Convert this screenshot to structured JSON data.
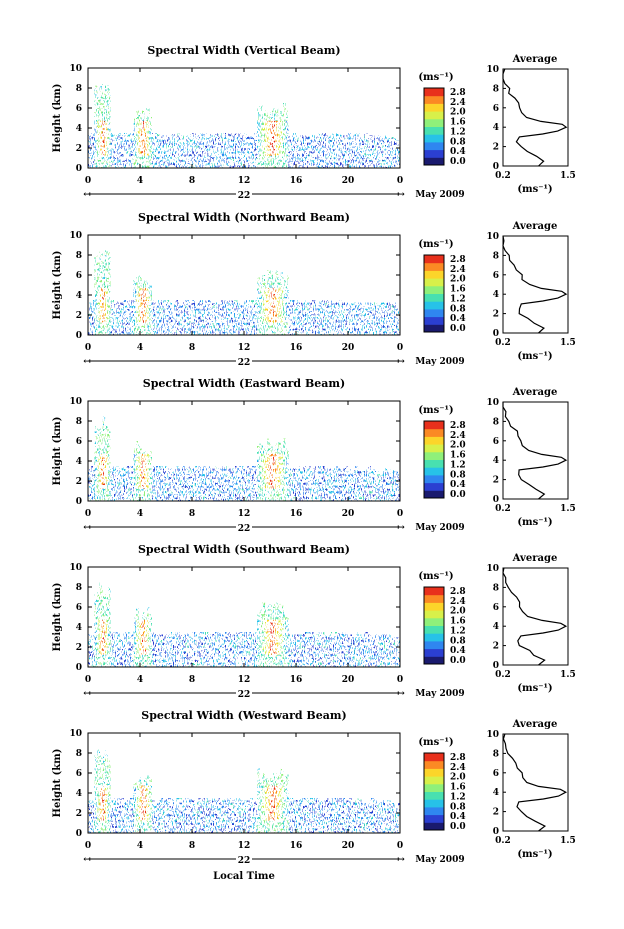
{
  "figure": {
    "x_axis_title": "Local Time",
    "month_label": "May 2009",
    "day_label": "22",
    "y_axis_title": "Height (km)",
    "unit_label": "(ms⁻¹)",
    "average_title": "Average",
    "average_unit": "(ms⁻¹)"
  },
  "colorbar": {
    "tick_labels": [
      "0.0",
      "0.4",
      "0.8",
      "1.2",
      "1.6",
      "2.0",
      "2.4",
      "2.8"
    ],
    "colors": [
      "#1a1a6e",
      "#2b3fd1",
      "#2f86f0",
      "#27c2e8",
      "#48e0b0",
      "#8ff07a",
      "#d8f04a",
      "#fcd52a",
      "#fb8a24",
      "#e8301c"
    ]
  },
  "panels": [
    {
      "title": "Spectral Width (Vertical Beam)"
    },
    {
      "title": "Spectral Width (Northward Beam)"
    },
    {
      "title": "Spectral Width (Eastward Beam)"
    },
    {
      "title": "Spectral Width (Southward Beam)"
    },
    {
      "title": "Spectral Width (Westward Beam)"
    }
  ],
  "chart_data": {
    "type": "heatmap",
    "x_label": "Local Time",
    "y_label": "Height (km)",
    "x_ticks": [
      "0",
      "4",
      "8",
      "12",
      "16",
      "20",
      "0"
    ],
    "x_range": [
      0,
      24
    ],
    "y_ticks": [
      "0",
      "2",
      "4",
      "6",
      "8",
      "10"
    ],
    "y_range": [
      0,
      10
    ],
    "colorbar_range": [
      0.0,
      2.8
    ],
    "convective_cells": [
      {
        "t_start": 0.5,
        "t_end": 1.6,
        "top_km": 8.5
      },
      {
        "t_start": 3.5,
        "t_end": 4.8,
        "top_km": 6.0
      },
      {
        "t_start": 13.0,
        "t_end": 15.2,
        "top_km": 6.5
      }
    ],
    "layer_top_km": 3.3,
    "average_profile": {
      "x_ticks": [
        "0.2",
        "1.5"
      ],
      "x_range": [
        0.2,
        1.5
      ],
      "y_ticks": [
        "0",
        "2",
        "4",
        "6",
        "8",
        "10"
      ],
      "height_km": [
        0.0,
        0.5,
        1.0,
        1.5,
        2.0,
        2.5,
        3.0,
        3.3,
        3.6,
        4.0,
        4.3,
        4.6,
        5.0,
        5.5,
        6.0,
        6.5,
        7.0,
        7.5,
        8.0,
        8.5,
        9.0,
        9.5,
        10.0
      ],
      "width_ms": [
        0.95,
        1.0,
        0.85,
        0.7,
        0.55,
        0.5,
        0.55,
        1.0,
        1.3,
        1.45,
        1.35,
        0.95,
        0.7,
        0.6,
        0.55,
        0.5,
        0.45,
        0.35,
        0.3,
        0.25,
        0.22,
        0.2,
        0.2
      ]
    }
  }
}
